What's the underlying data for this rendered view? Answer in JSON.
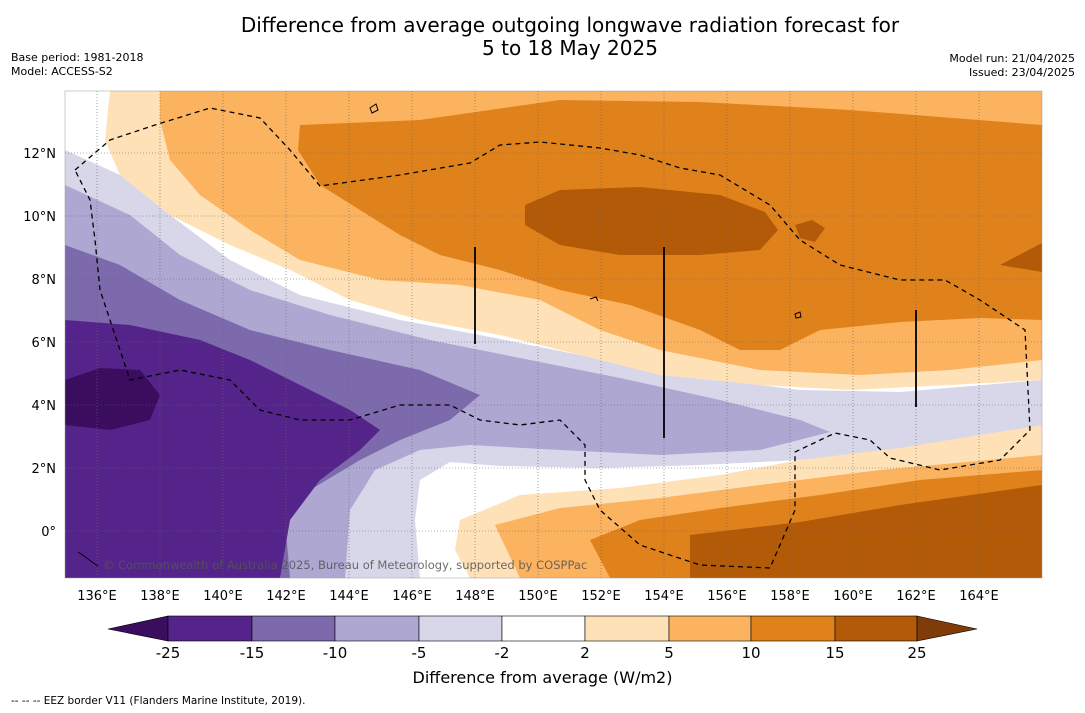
{
  "title_line1": "Difference from average outgoing longwave radiation forecast for",
  "title_line2": "5 to 18 May 2025",
  "base_period": "Base period: 1981-2018",
  "model": "Model: ACCESS-S2",
  "model_run": "Model run: 21/04/2025",
  "issued": "Issued: 23/04/2025",
  "credit": "© Commonwealth of Australia 2025, Bureau of Meteorology, supported by COSPPac",
  "footnote": "-- -- -- EEZ border V11 (Flanders Marine Institute, 2019).",
  "map": {
    "lon_range": [
      135,
      165
    ],
    "lat_range": [
      -1.5,
      14
    ],
    "lon_labels": [
      "136°E",
      "138°E",
      "140°E",
      "142°E",
      "144°E",
      "146°E",
      "148°E",
      "150°E",
      "152°E",
      "154°E",
      "156°E",
      "158°E",
      "160°E",
      "162°E",
      "164°E"
    ],
    "lat_labels": [
      "12°N",
      "10°N",
      "8°N",
      "6°N",
      "4°N",
      "2°N",
      "0°"
    ]
  },
  "colorbar": {
    "title": "Difference from average (W/m2)",
    "tick_labels": [
      "-25",
      "-15",
      "-10",
      "-5",
      "-2",
      "2",
      "5",
      "10",
      "15",
      "25"
    ],
    "colors": [
      "#3a0d5e",
      "#54248a",
      "#7c6aac",
      "#ada7d2",
      "#d8d7ea",
      "#ffffff",
      "#fee1b6",
      "#fbb35f",
      "#e0821b",
      "#b25a08",
      "#7f3b08"
    ]
  }
}
